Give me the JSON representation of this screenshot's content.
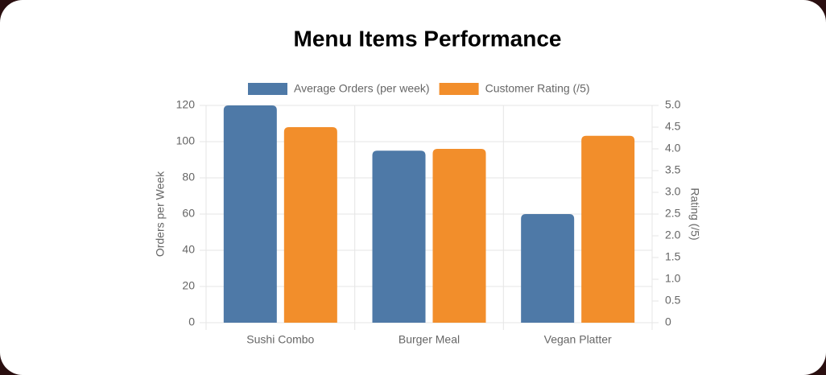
{
  "chart_data": {
    "type": "bar",
    "title": "Menu Items Performance",
    "categories": [
      "Sushi Combo",
      "Burger Meal",
      "Vegan Platter"
    ],
    "series": [
      {
        "name": "Average Orders (per week)",
        "color": "#4e79a7",
        "values": [
          120,
          95,
          60
        ]
      },
      {
        "name": "Customer Rating (/5)",
        "color": "#f28e2b",
        "values": [
          4.5,
          4.0,
          4.3
        ],
        "axis": "y2"
      }
    ],
    "ylabel": "Orders per Week",
    "y2label": "Rating (/5)",
    "ylim": [
      0,
      120
    ],
    "yticks": [
      0,
      20,
      40,
      60,
      80,
      100,
      120
    ],
    "y2lim": [
      0,
      5
    ],
    "y2ticks": [
      0,
      0.5,
      {
        "value": 1,
        "label": "1.0"
      },
      1.5,
      {
        "value": 2,
        "label": "2.0"
      },
      2.5,
      {
        "value": 3,
        "label": "3.0"
      },
      3.5,
      {
        "value": 4,
        "label": "4.0"
      },
      4.5,
      {
        "value": 5,
        "label": "5.0"
      }
    ],
    "grid": true,
    "legend": "top"
  }
}
